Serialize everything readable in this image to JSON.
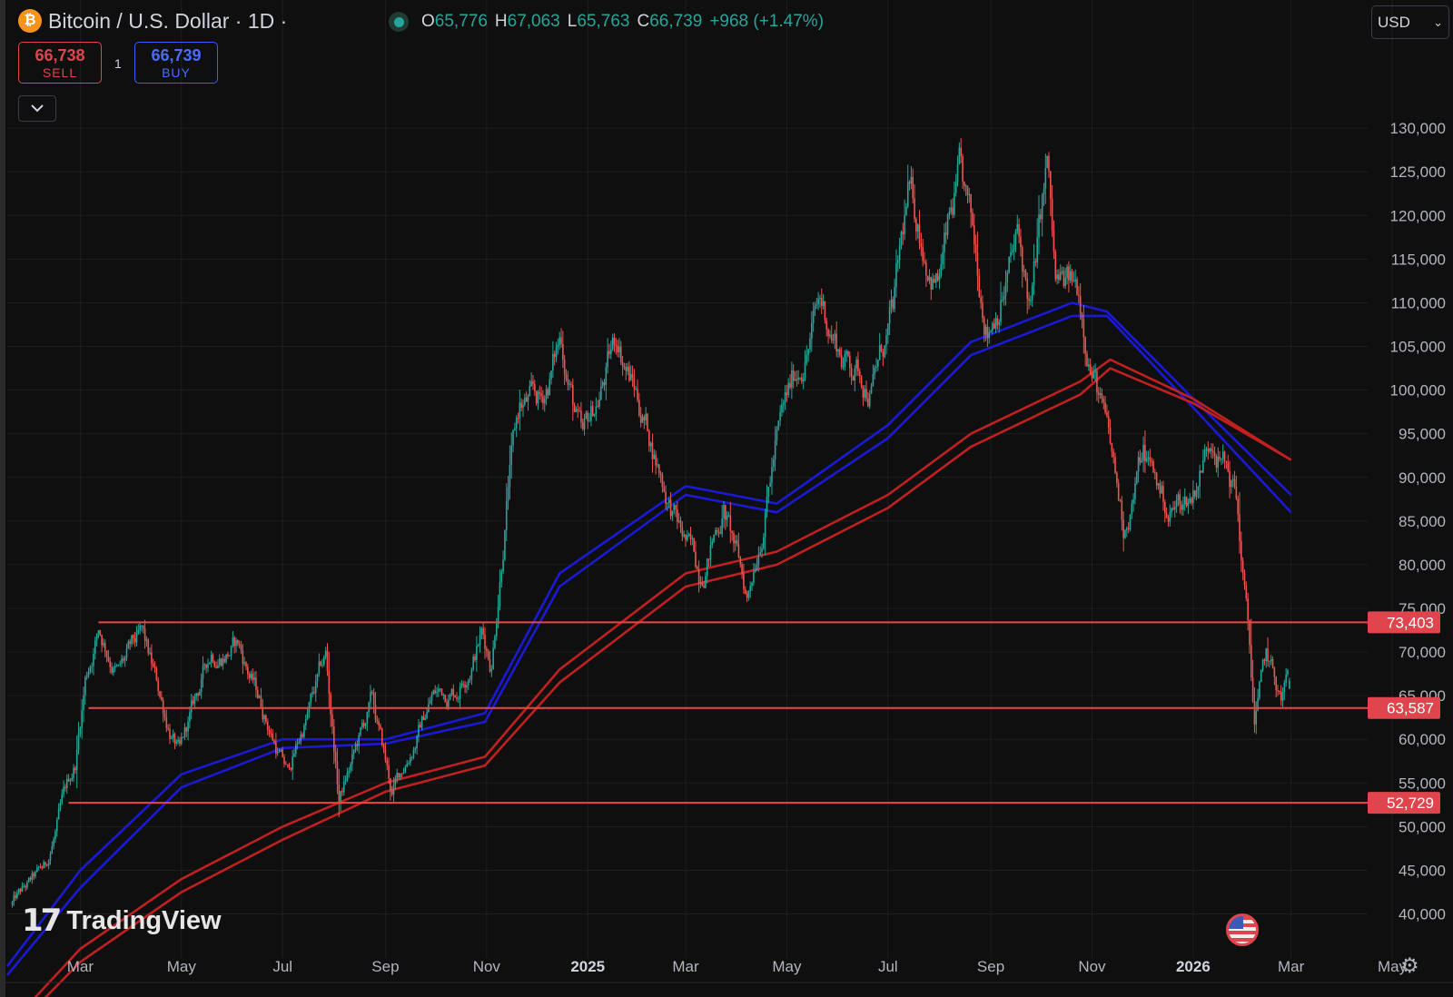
{
  "header": {
    "coin_icon": "bitcoin-icon",
    "symbol": "Bitcoin / U.S. Dollar · 1D ·",
    "ohlc": {
      "o_label": "O",
      "o": "65,776",
      "h_label": "H",
      "h": "67,063",
      "l_label": "L",
      "l": "65,763",
      "c_label": "C",
      "c": "66,739",
      "change": "+968 (+1.47%)"
    },
    "currency": "USD"
  },
  "trade": {
    "sell_price": "66,738",
    "sell_label": "SELL",
    "quantity": "1",
    "buy_price": "66,739",
    "buy_label": "BUY"
  },
  "brand": {
    "name": "TradingView"
  },
  "colors": {
    "background": "#0f0f0f",
    "grid": "#1e1e1e",
    "up": "#26a69a",
    "down": "#ef5350",
    "level_line": "#ef4444",
    "ema_blue": "#1a1ad6",
    "ema_red": "#c02020"
  },
  "chart_data": {
    "type": "candlestick",
    "title": "Bitcoin / U.S. Dollar · 1D",
    "x_tick_labels": [
      "Mar",
      "May",
      "Jul",
      "Sep",
      "Nov",
      "2025",
      "Mar",
      "May",
      "Jul",
      "Sep",
      "Nov",
      "2026",
      "Mar",
      "May"
    ],
    "x_tick_dates": [
      "2024-03-01",
      "2024-05-01",
      "2024-07-01",
      "2024-09-01",
      "2024-11-01",
      "2025-01-01",
      "2025-03-01",
      "2025-05-01",
      "2025-07-01",
      "2025-09-01",
      "2025-11-01",
      "2026-01-01",
      "2026-03-01",
      "2026-05-01"
    ],
    "y_tick_labels": [
      "130,000",
      "125,000",
      "120,000",
      "115,000",
      "110,000",
      "105,000",
      "100,000",
      "95,000",
      "90,000",
      "85,000",
      "80,000",
      "75,000",
      "70,000",
      "65,000",
      "60,000",
      "55,000",
      "50,000",
      "45,000",
      "40,000"
    ],
    "ylim": [
      36000,
      140000
    ],
    "xlim": [
      "2024-01-17",
      "2026-05-30"
    ],
    "grid": true,
    "price_path": [
      [
        "2024-01-20",
        41000
      ],
      [
        "2024-02-10",
        45000
      ],
      [
        "2024-02-20",
        52000
      ],
      [
        "2024-02-28",
        57000
      ],
      [
        "2024-03-05",
        67000
      ],
      [
        "2024-03-13",
        73000
      ],
      [
        "2024-03-25",
        68000
      ],
      [
        "2024-04-08",
        71000
      ],
      [
        "2024-04-20",
        64000
      ],
      [
        "2024-05-01",
        58000
      ],
      [
        "2024-05-20",
        70000
      ],
      [
        "2024-06-05",
        71000
      ],
      [
        "2024-06-25",
        61000
      ],
      [
        "2024-07-05",
        56000
      ],
      [
        "2024-07-28",
        69000
      ],
      [
        "2024-08-05",
        53000
      ],
      [
        "2024-08-25",
        64000
      ],
      [
        "2024-09-06",
        53500
      ],
      [
        "2024-09-30",
        65000
      ],
      [
        "2024-10-15",
        66000
      ],
      [
        "2024-10-30",
        72500
      ],
      [
        "2024-11-05",
        69000
      ],
      [
        "2024-11-15",
        90000
      ],
      [
        "2024-11-22",
        98000
      ],
      [
        "2024-12-05",
        98000
      ],
      [
        "2024-12-17",
        106000
      ],
      [
        "2024-12-30",
        93000
      ],
      [
        "2025-01-20",
        106000
      ],
      [
        "2025-02-05",
        97000
      ],
      [
        "2025-02-26",
        84000
      ],
      [
        "2025-03-10",
        79000
      ],
      [
        "2025-03-25",
        87000
      ],
      [
        "2025-04-08",
        76000
      ],
      [
        "2025-04-25",
        94000
      ],
      [
        "2025-05-10",
        103000
      ],
      [
        "2025-05-22",
        110000
      ],
      [
        "2025-06-05",
        104000
      ],
      [
        "2025-06-22",
        101000
      ],
      [
        "2025-07-05",
        108000
      ],
      [
        "2025-07-14",
        121000
      ],
      [
        "2025-08-01",
        113000
      ],
      [
        "2025-08-14",
        123000
      ],
      [
        "2025-08-31",
        108000
      ],
      [
        "2025-09-18",
        117000
      ],
      [
        "2025-09-26",
        109000
      ],
      [
        "2025-10-06",
        125000
      ],
      [
        "2025-10-11",
        111000
      ],
      [
        "2025-10-25",
        111000
      ],
      [
        "2025-11-05",
        101000
      ],
      [
        "2025-11-21",
        84000
      ],
      [
        "2025-12-03",
        93000
      ],
      [
        "2025-12-18",
        86000
      ],
      [
        "2026-01-01",
        88000
      ],
      [
        "2026-01-14",
        96000
      ],
      [
        "2026-01-28",
        88000
      ],
      [
        "2026-02-05",
        70000
      ],
      [
        "2026-02-08",
        62000
      ],
      [
        "2026-02-15",
        69000
      ],
      [
        "2026-02-24",
        64000
      ],
      [
        "2026-02-28",
        66739
      ]
    ],
    "last_candle": {
      "open": 65776,
      "high": 67063,
      "low": 65763,
      "close": 66739
    },
    "moving_averages": [
      {
        "color": "#1a1ad6",
        "path": [
          [
            "2024-01-17",
            34000
          ],
          [
            "2024-03-01",
            45000
          ],
          [
            "2024-05-01",
            56000
          ],
          [
            "2024-07-01",
            60000
          ],
          [
            "2024-09-01",
            60000
          ],
          [
            "2024-10-31",
            63000
          ],
          [
            "2024-12-15",
            79000
          ],
          [
            "2025-03-01",
            89000
          ],
          [
            "2025-04-25",
            87000
          ],
          [
            "2025-07-01",
            96000
          ],
          [
            "2025-08-20",
            105500
          ],
          [
            "2025-10-20",
            110000
          ],
          [
            "2025-11-10",
            109000
          ],
          [
            "2026-01-01",
            99000
          ],
          [
            "2026-03-01",
            88000
          ]
        ]
      },
      {
        "color": "#1a1ad6",
        "path": [
          [
            "2024-01-17",
            33000
          ],
          [
            "2024-03-01",
            43000
          ],
          [
            "2024-05-01",
            54500
          ],
          [
            "2024-07-01",
            59000
          ],
          [
            "2024-09-01",
            59500
          ],
          [
            "2024-10-31",
            62000
          ],
          [
            "2024-12-15",
            77500
          ],
          [
            "2025-03-01",
            88000
          ],
          [
            "2025-04-25",
            86000
          ],
          [
            "2025-07-01",
            94500
          ],
          [
            "2025-08-20",
            104000
          ],
          [
            "2025-10-20",
            108500
          ],
          [
            "2025-11-10",
            108500
          ],
          [
            "2026-01-01",
            98000
          ],
          [
            "2026-03-01",
            86000
          ]
        ]
      },
      {
        "color": "#c02020",
        "path": [
          [
            "2024-01-17",
            27000
          ],
          [
            "2024-03-01",
            36000
          ],
          [
            "2024-05-01",
            44000
          ],
          [
            "2024-07-01",
            50000
          ],
          [
            "2024-09-01",
            55000
          ],
          [
            "2024-10-31",
            58000
          ],
          [
            "2024-12-15",
            68000
          ],
          [
            "2025-03-01",
            79000
          ],
          [
            "2025-04-25",
            81500
          ],
          [
            "2025-07-01",
            88000
          ],
          [
            "2025-08-20",
            95000
          ],
          [
            "2025-10-25",
            101000
          ],
          [
            "2025-11-12",
            103500
          ],
          [
            "2026-01-01",
            99000
          ],
          [
            "2026-03-01",
            92000
          ]
        ]
      },
      {
        "color": "#c02020",
        "path": [
          [
            "2024-01-17",
            26000
          ],
          [
            "2024-03-01",
            34500
          ],
          [
            "2024-05-01",
            42500
          ],
          [
            "2024-07-01",
            48500
          ],
          [
            "2024-09-01",
            54000
          ],
          [
            "2024-10-31",
            57000
          ],
          [
            "2024-12-15",
            66500
          ],
          [
            "2025-03-01",
            77500
          ],
          [
            "2025-04-25",
            80000
          ],
          [
            "2025-07-01",
            86500
          ],
          [
            "2025-08-20",
            93500
          ],
          [
            "2025-10-25",
            99500
          ],
          [
            "2025-11-12",
            102500
          ],
          [
            "2026-01-01",
            98500
          ],
          [
            "2026-03-01",
            92000
          ]
        ]
      }
    ],
    "horizontal_levels": [
      {
        "value": 73403,
        "label": "73,403",
        "start": "2024-03-12"
      },
      {
        "value": 63587,
        "label": "63,587",
        "start": "2024-03-06"
      },
      {
        "value": 52729,
        "label": "52,729",
        "start": "2024-02-23"
      }
    ]
  },
  "icons": {
    "collapse": "chevron-down-icon",
    "currency_dropdown": "chevron-down-icon",
    "event": "us-flag-icon",
    "settings": "gear-icon"
  }
}
